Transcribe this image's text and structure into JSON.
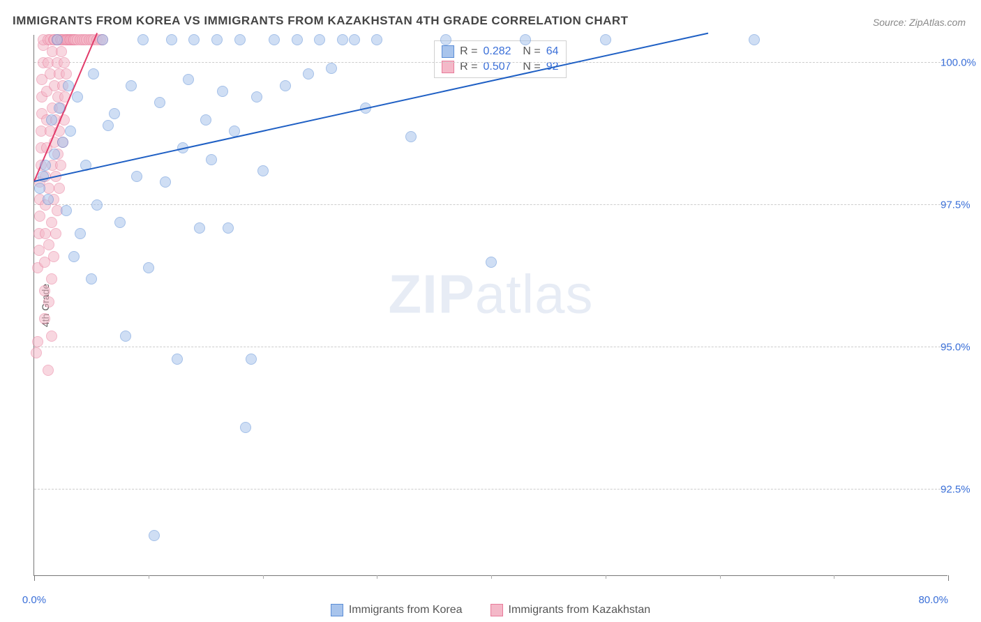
{
  "title": "IMMIGRANTS FROM KOREA VS IMMIGRANTS FROM KAZAKHSTAN 4TH GRADE CORRELATION CHART",
  "source": "Source: ZipAtlas.com",
  "watermark_a": "ZIP",
  "watermark_b": "atlas",
  "y_axis_label": "4th Grade",
  "chart": {
    "type": "scatter",
    "xlim": [
      0,
      80
    ],
    "ylim": [
      91.0,
      100.5
    ],
    "x_ticks_major": [
      0,
      80
    ],
    "x_ticks_minor": [
      10,
      20,
      30,
      40,
      50,
      60,
      70
    ],
    "y_ticks_major": [
      92.5,
      95.0,
      97.5,
      100.0
    ],
    "y_tick_labels": [
      "92.5%",
      "95.0%",
      "97.5%",
      "100.0%"
    ],
    "x_tick_labels": {
      "0": "0.0%",
      "80": "80.0%"
    },
    "grid_color": "#cccccc",
    "axis_color": "#777777",
    "background_color": "#ffffff",
    "tick_label_color": "#3a6fd8",
    "point_radius": 8,
    "point_opacity": 0.55,
    "series": [
      {
        "name": "Immigrants from Korea",
        "fill_color": "#a8c4ec",
        "stroke_color": "#5b8dd6",
        "trend_color": "#1e5fc4",
        "R": "0.282",
        "N": "64",
        "trend": {
          "x1": 0,
          "y1": 97.9,
          "x2": 59,
          "y2": 100.5
        },
        "points": [
          [
            0.5,
            97.8
          ],
          [
            0.8,
            98.0
          ],
          [
            1.0,
            98.2
          ],
          [
            1.2,
            97.6
          ],
          [
            1.5,
            99.0
          ],
          [
            1.8,
            98.4
          ],
          [
            2.0,
            100.4
          ],
          [
            2.2,
            99.2
          ],
          [
            2.5,
            98.6
          ],
          [
            2.8,
            97.4
          ],
          [
            3.0,
            99.6
          ],
          [
            3.2,
            98.8
          ],
          [
            3.5,
            96.6
          ],
          [
            3.8,
            99.4
          ],
          [
            4.0,
            97.0
          ],
          [
            4.5,
            98.2
          ],
          [
            5.0,
            96.2
          ],
          [
            5.2,
            99.8
          ],
          [
            5.5,
            97.5
          ],
          [
            6.0,
            100.4
          ],
          [
            6.5,
            98.9
          ],
          [
            7.0,
            99.1
          ],
          [
            7.5,
            97.2
          ],
          [
            8.0,
            95.2
          ],
          [
            8.5,
            99.6
          ],
          [
            9.0,
            98.0
          ],
          [
            9.5,
            100.4
          ],
          [
            10.0,
            96.4
          ],
          [
            10.5,
            91.7
          ],
          [
            11.0,
            99.3
          ],
          [
            11.5,
            97.9
          ],
          [
            12.0,
            100.4
          ],
          [
            12.5,
            94.8
          ],
          [
            13.0,
            98.5
          ],
          [
            13.5,
            99.7
          ],
          [
            14.0,
            100.4
          ],
          [
            14.5,
            97.1
          ],
          [
            15.0,
            99.0
          ],
          [
            15.5,
            98.3
          ],
          [
            16.0,
            100.4
          ],
          [
            16.5,
            99.5
          ],
          [
            17.0,
            97.1
          ],
          [
            17.5,
            98.8
          ],
          [
            18.0,
            100.4
          ],
          [
            18.5,
            93.6
          ],
          [
            19.0,
            94.8
          ],
          [
            19.5,
            99.4
          ],
          [
            20.0,
            98.1
          ],
          [
            21.0,
            100.4
          ],
          [
            22.0,
            99.6
          ],
          [
            23.0,
            100.4
          ],
          [
            24.0,
            99.8
          ],
          [
            25.0,
            100.4
          ],
          [
            26.0,
            99.9
          ],
          [
            27.0,
            100.4
          ],
          [
            28.0,
            100.4
          ],
          [
            29.0,
            99.2
          ],
          [
            30.0,
            100.4
          ],
          [
            33.0,
            98.7
          ],
          [
            36.0,
            100.4
          ],
          [
            40.0,
            96.5
          ],
          [
            43.0,
            100.4
          ],
          [
            50.0,
            100.4
          ],
          [
            63.0,
            100.4
          ]
        ]
      },
      {
        "name": "Immigrants from Kazakhstan",
        "fill_color": "#f4b8c8",
        "stroke_color": "#e87a9a",
        "trend_color": "#e23b6a",
        "R": "0.507",
        "N": "92",
        "trend": {
          "x1": 0,
          "y1": 97.9,
          "x2": 5.5,
          "y2": 100.5
        },
        "points": [
          [
            0.2,
            94.9
          ],
          [
            0.3,
            95.1
          ],
          [
            0.3,
            96.4
          ],
          [
            0.4,
            96.7
          ],
          [
            0.4,
            97.0
          ],
          [
            0.5,
            97.3
          ],
          [
            0.5,
            97.6
          ],
          [
            0.5,
            97.9
          ],
          [
            0.6,
            98.2
          ],
          [
            0.6,
            98.5
          ],
          [
            0.6,
            98.8
          ],
          [
            0.7,
            99.1
          ],
          [
            0.7,
            99.4
          ],
          [
            0.7,
            99.7
          ],
          [
            0.8,
            100.0
          ],
          [
            0.8,
            100.3
          ],
          [
            0.8,
            100.4
          ],
          [
            0.9,
            95.5
          ],
          [
            0.9,
            96.0
          ],
          [
            0.9,
            96.5
          ],
          [
            1.0,
            97.0
          ],
          [
            1.0,
            97.5
          ],
          [
            1.0,
            98.0
          ],
          [
            1.1,
            98.5
          ],
          [
            1.1,
            99.0
          ],
          [
            1.1,
            99.5
          ],
          [
            1.2,
            100.0
          ],
          [
            1.2,
            100.4
          ],
          [
            1.2,
            94.6
          ],
          [
            1.3,
            95.8
          ],
          [
            1.3,
            96.8
          ],
          [
            1.3,
            97.8
          ],
          [
            1.4,
            98.8
          ],
          [
            1.4,
            99.8
          ],
          [
            1.4,
            100.4
          ],
          [
            1.5,
            95.2
          ],
          [
            1.5,
            96.2
          ],
          [
            1.5,
            97.2
          ],
          [
            1.6,
            98.2
          ],
          [
            1.6,
            99.2
          ],
          [
            1.6,
            100.2
          ],
          [
            1.7,
            100.4
          ],
          [
            1.7,
            96.6
          ],
          [
            1.7,
            97.6
          ],
          [
            1.8,
            98.6
          ],
          [
            1.8,
            99.6
          ],
          [
            1.8,
            100.4
          ],
          [
            1.9,
            97.0
          ],
          [
            1.9,
            98.0
          ],
          [
            1.9,
            99.0
          ],
          [
            2.0,
            100.0
          ],
          [
            2.0,
            100.4
          ],
          [
            2.0,
            97.4
          ],
          [
            2.1,
            98.4
          ],
          [
            2.1,
            99.4
          ],
          [
            2.1,
            100.4
          ],
          [
            2.2,
            97.8
          ],
          [
            2.2,
            98.8
          ],
          [
            2.2,
            99.8
          ],
          [
            2.3,
            100.4
          ],
          [
            2.3,
            98.2
          ],
          [
            2.3,
            99.2
          ],
          [
            2.4,
            100.2
          ],
          [
            2.4,
            100.4
          ],
          [
            2.5,
            98.6
          ],
          [
            2.5,
            99.6
          ],
          [
            2.5,
            100.4
          ],
          [
            2.6,
            99.0
          ],
          [
            2.6,
            100.0
          ],
          [
            2.7,
            100.4
          ],
          [
            2.7,
            99.4
          ],
          [
            2.8,
            100.4
          ],
          [
            2.8,
            99.8
          ],
          [
            2.9,
            100.4
          ],
          [
            3.0,
            100.4
          ],
          [
            3.1,
            100.4
          ],
          [
            3.2,
            100.4
          ],
          [
            3.3,
            100.4
          ],
          [
            3.4,
            100.4
          ],
          [
            3.5,
            100.4
          ],
          [
            3.6,
            100.4
          ],
          [
            3.8,
            100.4
          ],
          [
            4.0,
            100.4
          ],
          [
            4.2,
            100.4
          ],
          [
            4.4,
            100.4
          ],
          [
            4.6,
            100.4
          ],
          [
            4.8,
            100.4
          ],
          [
            5.0,
            100.4
          ],
          [
            5.2,
            100.4
          ],
          [
            5.5,
            100.4
          ],
          [
            5.8,
            100.4
          ],
          [
            6.0,
            100.4
          ]
        ]
      }
    ]
  },
  "legend_top": {
    "rows": [
      {
        "r_label": "R =",
        "n_label": "N ="
      },
      {
        "r_label": "R =",
        "n_label": "N ="
      }
    ]
  },
  "bottom_legend": {
    "items": [
      "Immigrants from Korea",
      "Immigrants from Kazakhstan"
    ]
  }
}
